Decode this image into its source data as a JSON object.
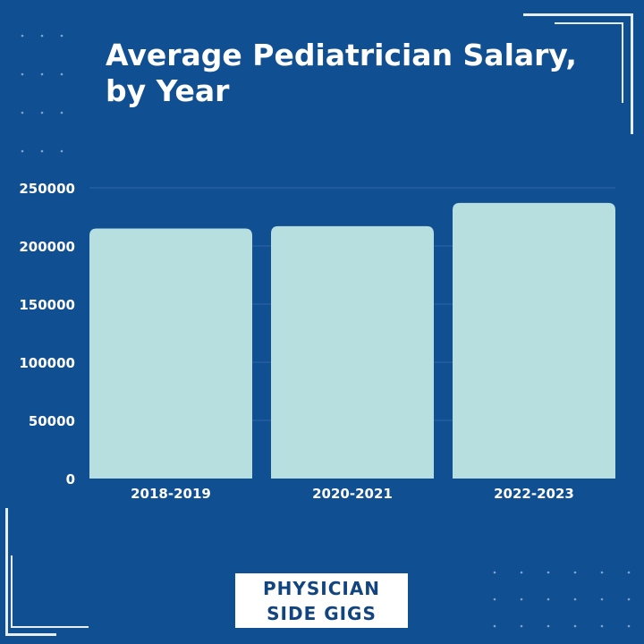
{
  "chart_data": {
    "type": "bar",
    "title": "Average Pediatrician Salary, by Year",
    "categories": [
      "2018-2019",
      "2020-2021",
      "2022-2023"
    ],
    "values": [
      215000,
      217000,
      237000
    ],
    "ylim": [
      0,
      250000
    ],
    "yticks": [
      "0",
      "50000",
      "100000",
      "150000",
      "200000",
      "250000"
    ],
    "grid": true,
    "colors": {
      "background": "#114f93",
      "bar": "#b7dfdf",
      "text": "#ffffff"
    }
  },
  "logo": {
    "line1": "PHYSICIAN",
    "line2": "SIDE GIGS"
  }
}
